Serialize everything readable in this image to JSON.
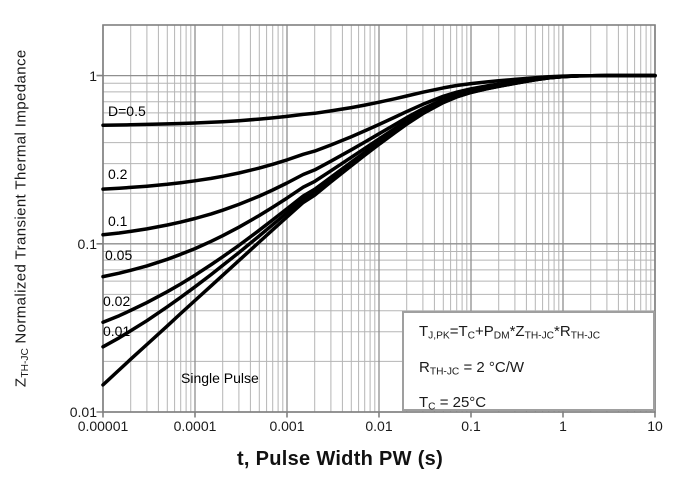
{
  "chart_data": {
    "type": "line",
    "title": "",
    "xlabel": "t, Pulse Width PW (s)",
    "ylabel": "ZTH-JC Normalized Transient Thermal Impedance",
    "ylabel_segments": [
      [
        "Z",
        0
      ],
      [
        "TH-JC",
        1
      ],
      [
        " Normalized Transient Thermal Impedance",
        0
      ]
    ],
    "x_scale": "log",
    "y_scale": "log",
    "xlim": [
      1e-05,
      10
    ],
    "ylim": [
      0.01,
      2
    ],
    "grid": "both-major-and-minor",
    "x_ticks": [
      1e-05,
      0.0001,
      0.001,
      0.01,
      0.1,
      1,
      10
    ],
    "x_tick_labels": [
      "0.00001",
      "0.0001",
      "0.001",
      "0.01",
      "0.1",
      "1",
      "10"
    ],
    "y_ticks": [
      0.01,
      0.1,
      1
    ],
    "y_tick_labels": [
      "0.01",
      "0.1",
      "1"
    ],
    "t": [
      1e-05,
      1.5e-05,
      2e-05,
      3e-05,
      5e-05,
      7e-05,
      0.0001,
      0.00015,
      0.0002,
      0.0003,
      0.0005,
      0.0007,
      0.001,
      0.0015,
      0.002,
      0.003,
      0.005,
      0.007,
      0.01,
      0.015,
      0.02,
      0.03,
      0.05,
      0.07,
      0.1,
      0.15,
      0.2,
      0.3,
      0.5,
      0.7,
      1,
      1.5,
      2,
      3,
      5,
      7,
      10
    ],
    "series": [
      {
        "name": "D=0.5",
        "label": "D=0.5",
        "duty": 0.5,
        "z": [
          0.5073,
          0.5089,
          0.5103,
          0.5126,
          0.5163,
          0.5193,
          0.523,
          0.5282,
          0.5325,
          0.5398,
          0.5513,
          0.5606,
          0.5722,
          0.588,
          0.5974,
          0.6167,
          0.6457,
          0.6681,
          0.695,
          0.7295,
          0.7571,
          0.7973,
          0.8458,
          0.8732,
          0.897,
          0.9181,
          0.9313,
          0.9497,
          0.9723,
          0.9846,
          0.9935,
          0.9985,
          0.9997,
          1,
          1,
          1,
          1
        ]
      },
      {
        "name": "D=0.2",
        "label": "0.2",
        "duty": 0.2,
        "z": [
          0.2116,
          0.2142,
          0.2165,
          0.2202,
          0.226,
          0.2308,
          0.2368,
          0.245,
          0.252,
          0.2636,
          0.282,
          0.2969,
          0.3154,
          0.3408,
          0.3558,
          0.3867,
          0.4331,
          0.469,
          0.512,
          0.5672,
          0.6114,
          0.6757,
          0.7532,
          0.7971,
          0.8351,
          0.869,
          0.8901,
          0.9195,
          0.9557,
          0.9753,
          0.9896,
          0.9975,
          0.9994,
          1,
          1,
          1,
          1
        ]
      },
      {
        "name": "D=0.1",
        "label": "0.1",
        "duty": 0.1,
        "z": [
          0.1131,
          0.116,
          0.1185,
          0.1227,
          0.1293,
          0.1347,
          0.1414,
          0.1507,
          0.1585,
          0.1716,
          0.1923,
          0.209,
          0.2299,
          0.2584,
          0.2752,
          0.3101,
          0.3623,
          0.4026,
          0.451,
          0.5131,
          0.5628,
          0.6351,
          0.7224,
          0.7718,
          0.8145,
          0.8526,
          0.8763,
          0.9095,
          0.9501,
          0.9722,
          0.9883,
          0.9972,
          0.9994,
          1,
          1,
          1,
          1
        ]
      },
      {
        "name": "D=0.05",
        "label": "0.05",
        "duty": 0.05,
        "z": [
          0.0638,
          0.0669,
          0.0696,
          0.0739,
          0.0809,
          0.0866,
          0.0937,
          0.1035,
          0.1118,
          0.1255,
          0.1474,
          0.165,
          0.1871,
          0.2172,
          0.235,
          0.2717,
          0.3268,
          0.3694,
          0.4205,
          0.4861,
          0.5385,
          0.6149,
          0.7069,
          0.7591,
          0.8042,
          0.8444,
          0.8695,
          0.9044,
          0.9474,
          0.9706,
          0.9877,
          0.9971,
          0.9993,
          1,
          1,
          1,
          1
        ]
      },
      {
        "name": "D=0.02",
        "label": "0.02",
        "duty": 0.02,
        "z": [
          0.0342,
          0.0374,
          0.0402,
          0.0447,
          0.0519,
          0.0577,
          0.0651,
          0.0752,
          0.0837,
          0.0979,
          0.1205,
          0.1387,
          0.1614,
          0.1925,
          0.2108,
          0.2487,
          0.3056,
          0.3495,
          0.4022,
          0.4698,
          0.5239,
          0.6027,
          0.6977,
          0.7515,
          0.798,
          0.8395,
          0.8654,
          0.9014,
          0.9457,
          0.9697,
          0.9873,
          0.997,
          0.9993,
          1,
          1,
          1,
          1
        ]
      },
      {
        "name": "D=0.01",
        "label": "0.01",
        "duty": 0.01,
        "z": [
          0.0244,
          0.0276,
          0.0304,
          0.0349,
          0.0422,
          0.0481,
          0.0555,
          0.0657,
          0.0744,
          0.0887,
          0.1115,
          0.1299,
          0.1529,
          0.1842,
          0.2028,
          0.2411,
          0.2985,
          0.3428,
          0.3961,
          0.4644,
          0.5191,
          0.5987,
          0.6946,
          0.7489,
          0.796,
          0.8378,
          0.864,
          0.9004,
          0.9451,
          0.9694,
          0.9871,
          0.9969,
          0.9993,
          1,
          1,
          1,
          1
        ]
      },
      {
        "name": "Single Pulse",
        "label": "Single Pulse",
        "duty": null,
        "z": [
          0.0145,
          0.0178,
          0.0206,
          0.0252,
          0.0325,
          0.0385,
          0.046,
          0.0563,
          0.065,
          0.0795,
          0.1025,
          0.1211,
          0.1443,
          0.176,
          0.1947,
          0.2334,
          0.2914,
          0.3362,
          0.39,
          0.459,
          0.5142,
          0.5946,
          0.6915,
          0.7464,
          0.7939,
          0.8362,
          0.8626,
          0.8994,
          0.9446,
          0.9691,
          0.987,
          0.9969,
          0.9993,
          1,
          1,
          1,
          1
        ]
      }
    ],
    "annotation_lines": [
      [
        [
          "T",
          0
        ],
        [
          "J,PK",
          1
        ],
        [
          "=T",
          0
        ],
        [
          "C",
          1
        ],
        [
          "+P",
          0
        ],
        [
          "DM",
          1
        ],
        [
          "*Z",
          0
        ],
        [
          "TH-JC",
          1
        ],
        [
          "*R",
          0
        ],
        [
          "TH-JC",
          1
        ]
      ],
      [
        [
          "R",
          0
        ],
        [
          "TH-JC",
          1
        ],
        [
          " = 2 °C/W",
          0
        ]
      ],
      [
        [
          "T",
          0
        ],
        [
          "C",
          1
        ],
        [
          " = 25°C",
          0
        ]
      ]
    ],
    "legend_position": "none",
    "colors": {
      "curve": "#000000",
      "grid_minor": "#b5b5b5",
      "grid_major": "#8f8f8f",
      "plot_border": "#808080",
      "tick": "#808080",
      "text": "#1a1a1a",
      "annotation_border": "#9f9f9f",
      "annotation_bg": "#ffffff"
    }
  }
}
